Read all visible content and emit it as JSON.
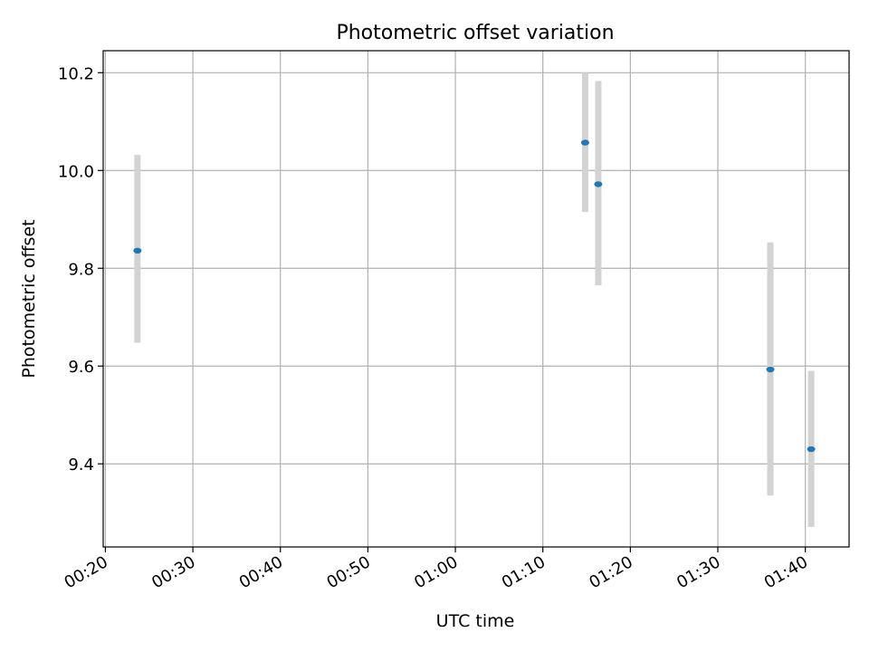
{
  "chart_data": {
    "type": "scatter",
    "title": "Photometric offset variation",
    "xlabel": "UTC time",
    "ylabel": "Photometric offset",
    "x_ticks": [
      "00:20",
      "00:30",
      "00:40",
      "00:50",
      "01:00",
      "01:10",
      "01:20",
      "01:30",
      "01:40"
    ],
    "xlim": [
      "00:19:45",
      "01:45:00"
    ],
    "y_ticks": [
      "9.4",
      "9.6",
      "9.8",
      "10.0",
      "10.2"
    ],
    "ylim": [
      9.23,
      10.245
    ],
    "grid": true,
    "colors": {
      "marker": "#1f77b4",
      "errorbar": "#d3d3d3",
      "grid": "#b0b0b0"
    },
    "points": [
      {
        "x": "00:23:40",
        "y": 9.836,
        "y_low": 9.648,
        "y_high": 10.032
      },
      {
        "x": "01:14:50",
        "y": 10.057,
        "y_low": 9.915,
        "y_high": 10.2
      },
      {
        "x": "01:16:20",
        "y": 9.972,
        "y_low": 9.765,
        "y_high": 10.183
      },
      {
        "x": "01:36:00",
        "y": 9.593,
        "y_low": 9.335,
        "y_high": 9.853
      },
      {
        "x": "01:40:40",
        "y": 9.43,
        "y_low": 9.271,
        "y_high": 9.59
      }
    ]
  }
}
